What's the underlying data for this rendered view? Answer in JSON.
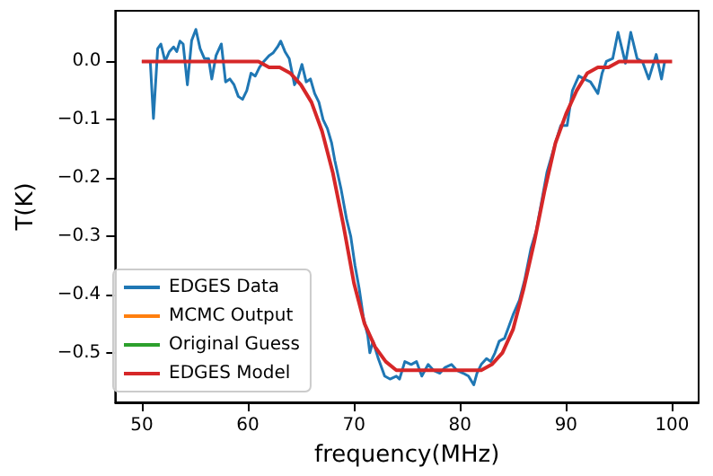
{
  "chart_data": {
    "type": "line",
    "xlabel": "frequency(MHz)",
    "ylabel": "T(K)",
    "xlim": [
      47.5,
      102.5
    ],
    "xticks": [
      50,
      60,
      70,
      80,
      90,
      100
    ],
    "ylim": [
      -0.585,
      0.087
    ],
    "yticks": [
      {
        "value": 0,
        "label": "0.0"
      },
      {
        "value": -0.1,
        "label": "−0.1"
      },
      {
        "value": -0.2,
        "label": "−0.2"
      },
      {
        "value": -0.3,
        "label": "−0.3"
      },
      {
        "value": -0.4,
        "label": "−0.4"
      },
      {
        "value": -0.5,
        "label": "−0.5"
      }
    ],
    "legend": "bottom left",
    "grid": false,
    "series": [
      {
        "name": "EDGES Data",
        "color": "#1f77b4",
        "x": [
          50,
          50.8,
          51.1,
          51.5,
          51.8,
          52.2,
          52.6,
          53.0,
          53.3,
          53.6,
          53.9,
          54.3,
          54.7,
          55.1,
          55.5,
          55.9,
          56.3,
          56.6,
          57.0,
          57.5,
          57.9,
          58.3,
          58.7,
          59.1,
          59.5,
          59.9,
          60.3,
          60.7,
          61.1,
          61.5,
          62.0,
          62.4,
          62.8,
          63.1,
          63.5,
          63.9,
          64.4,
          64.7,
          65.1,
          65.5,
          65.9,
          66.3,
          66.7,
          67.1,
          67.5,
          67.9,
          68.2,
          68.8,
          69.3,
          69.7,
          70.1,
          70.5,
          70.9,
          71.3,
          71.5,
          71.8,
          72.3,
          72.9,
          73.4,
          74.0,
          74.3,
          74.8,
          75.4,
          75.9,
          76.4,
          77.0,
          77.5,
          78.1,
          78.6,
          79.2,
          79.7,
          80.3,
          80.8,
          81.3,
          81.6,
          82.0,
          82.5,
          82.9,
          83.3,
          83.7,
          84.2,
          84.6,
          85.0,
          85.6,
          86.1,
          86.7,
          87.2,
          88.2,
          89.0,
          89.5,
          90.1,
          90.6,
          91.2,
          91.7,
          92.3,
          93.0,
          93.4,
          93.8,
          94.4,
          94.9,
          95.6,
          96.1,
          96.7,
          97.2,
          97.8,
          98.5,
          99.0,
          99.3
        ],
        "values": [
          0,
          0,
          -0.098,
          0.022,
          0.03,
          0,
          0.017,
          0.025,
          0.017,
          0.035,
          0.03,
          -0.04,
          0.036,
          0.055,
          0.022,
          0.005,
          0.005,
          -0.03,
          0.01,
          0.03,
          -0.035,
          -0.03,
          -0.04,
          -0.06,
          -0.065,
          -0.05,
          -0.02,
          -0.025,
          -0.01,
          0,
          0.01,
          0.015,
          0.025,
          0.035,
          0.017,
          0.005,
          -0.04,
          -0.03,
          -0.005,
          -0.035,
          -0.03,
          -0.055,
          -0.07,
          -0.1,
          -0.115,
          -0.14,
          -0.17,
          -0.22,
          -0.27,
          -0.3,
          -0.35,
          -0.39,
          -0.44,
          -0.47,
          -0.5,
          -0.48,
          -0.51,
          -0.54,
          -0.545,
          -0.54,
          -0.545,
          -0.515,
          -0.52,
          -0.515,
          -0.54,
          -0.52,
          -0.53,
          -0.535,
          -0.525,
          -0.52,
          -0.53,
          -0.535,
          -0.54,
          -0.555,
          -0.535,
          -0.52,
          -0.51,
          -0.515,
          -0.5,
          -0.48,
          -0.475,
          -0.455,
          -0.435,
          -0.41,
          -0.375,
          -0.32,
          -0.29,
          -0.19,
          -0.14,
          -0.11,
          -0.11,
          -0.05,
          -0.025,
          -0.03,
          -0.035,
          -0.055,
          -0.02,
          0,
          0.005,
          0.05,
          -0.003,
          0.05,
          0.005,
          0,
          -0.03,
          0.012,
          -0.03,
          0
        ]
      },
      {
        "name": "MCMC Output",
        "color": "#ff7f0e"
      },
      {
        "name": "Original Guess",
        "color": "#2ca02c"
      },
      {
        "name": "EDGES Model",
        "color": "#d62728",
        "x": [
          50,
          55,
          60,
          61,
          62,
          63,
          64,
          65,
          66,
          67,
          68,
          69,
          70,
          71,
          72,
          73,
          74,
          75,
          76,
          77,
          78,
          79,
          80,
          81,
          82,
          83,
          84,
          85,
          86,
          87,
          88,
          89,
          90,
          91,
          92,
          93,
          94,
          95,
          96,
          100
        ],
        "values": [
          0,
          0,
          0,
          0,
          -0.01,
          -0.01,
          -0.02,
          -0.04,
          -0.07,
          -0.12,
          -0.19,
          -0.28,
          -0.38,
          -0.45,
          -0.49,
          -0.515,
          -0.53,
          -0.53,
          -0.53,
          -0.53,
          -0.53,
          -0.53,
          -0.53,
          -0.53,
          -0.53,
          -0.52,
          -0.5,
          -0.46,
          -0.39,
          -0.31,
          -0.22,
          -0.14,
          -0.09,
          -0.05,
          -0.02,
          -0.01,
          -0.01,
          0,
          0,
          0
        ]
      }
    ]
  }
}
